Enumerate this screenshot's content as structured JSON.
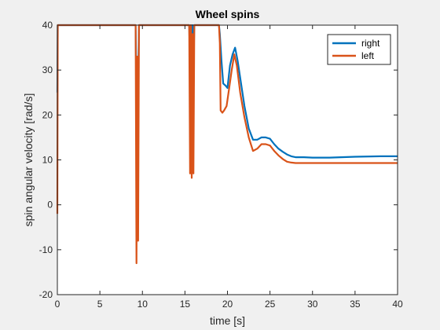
{
  "chart_data": {
    "type": "line",
    "title": "Wheel spins",
    "xlabel": "time [s]",
    "ylabel": "spin angular velocity [rad/s]",
    "xlim": [
      0,
      40
    ],
    "ylim": [
      -20,
      40
    ],
    "xticks": [
      0,
      5,
      10,
      15,
      20,
      25,
      30,
      35,
      40
    ],
    "yticks": [
      -20,
      -10,
      0,
      10,
      20,
      30,
      40
    ],
    "grid": false,
    "legend_position": "top-right",
    "series": [
      {
        "name": "right",
        "color": "#0072BD",
        "x": [
          0,
          0.05,
          0.15,
          0.3,
          9.2,
          9.3,
          9.4,
          9.5,
          9.6,
          9.7,
          9.8,
          15.5,
          15.6,
          15.7,
          15.8,
          15.9,
          16.0,
          16.1,
          16.2,
          16.3,
          16.4,
          16.5,
          19.0,
          19.1,
          19.3,
          19.5,
          19.8,
          20.0,
          20.3,
          20.6,
          20.9,
          21.2,
          21.6,
          22.0,
          22.5,
          23.0,
          23.5,
          24.0,
          24.5,
          25.0,
          25.5,
          26.0,
          26.5,
          27.0,
          27.5,
          28.0,
          29.0,
          30.0,
          32.0,
          35.0,
          38.0,
          40.0
        ],
        "y": [
          25,
          40,
          40,
          40,
          40,
          24,
          31,
          27,
          40,
          40,
          40,
          40,
          31,
          40,
          24,
          40,
          30,
          40,
          40,
          40,
          40,
          40,
          40,
          38,
          32,
          27,
          26.5,
          26,
          31,
          33.5,
          35,
          32,
          27,
          22,
          17,
          14.5,
          14.5,
          15,
          15,
          14.7,
          13.5,
          12.5,
          11.8,
          11.2,
          10.8,
          10.6,
          10.6,
          10.5,
          10.5,
          10.7,
          10.8,
          10.8
        ]
      },
      {
        "name": "left",
        "color": "#D95319",
        "x": [
          0,
          0.05,
          0.15,
          0.3,
          9.2,
          9.3,
          9.4,
          9.5,
          9.6,
          9.7,
          9.8,
          15.5,
          15.6,
          15.7,
          15.8,
          15.9,
          16.0,
          16.1,
          16.2,
          16.3,
          16.4,
          16.5,
          19.0,
          19.1,
          19.2,
          19.4,
          19.6,
          19.9,
          20.2,
          20.5,
          20.8,
          21.1,
          21.5,
          22.0,
          22.5,
          23.0,
          23.5,
          24.0,
          24.5,
          25.0,
          25.5,
          26.0,
          26.5,
          27.0,
          27.5,
          28.0,
          29.0,
          30.0,
          32.0,
          35.0,
          38.0,
          40.0
        ],
        "y": [
          -2,
          40,
          40,
          40,
          40,
          -13,
          33,
          -8,
          40,
          40,
          40,
          40,
          7,
          40,
          6,
          38,
          7,
          40,
          40,
          40,
          40,
          40,
          40,
          36,
          21,
          20.5,
          21,
          22,
          26,
          30,
          33.5,
          31,
          25,
          19.5,
          15,
          12,
          12.5,
          13.5,
          13.5,
          13.2,
          12,
          11,
          10.2,
          9.6,
          9.4,
          9.3,
          9.3,
          9.3,
          9.3,
          9.3,
          9.3,
          9.3
        ]
      }
    ]
  }
}
